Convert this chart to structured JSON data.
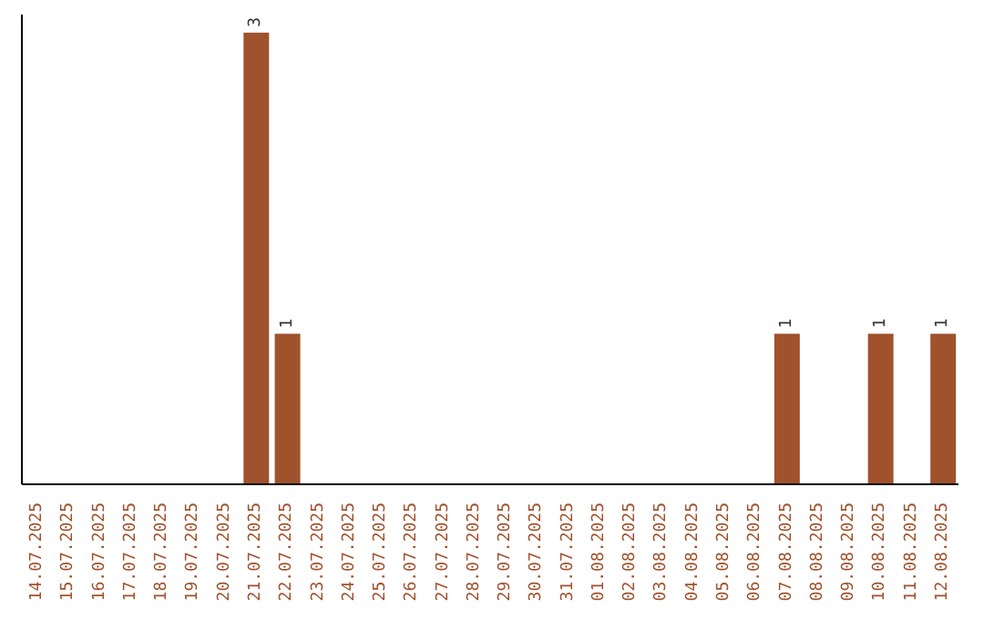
{
  "chart_data": {
    "type": "bar",
    "categories": [
      "14.07.2025",
      "15.07.2025",
      "16.07.2025",
      "17.07.2025",
      "18.07.2025",
      "19.07.2025",
      "20.07.2025",
      "21.07.2025",
      "22.07.2025",
      "23.07.2025",
      "24.07.2025",
      "25.07.2025",
      "26.07.2025",
      "27.07.2025",
      "28.07.2025",
      "29.07.2025",
      "30.07.2025",
      "31.07.2025",
      "01.08.2025",
      "02.08.2025",
      "03.08.2025",
      "04.08.2025",
      "05.08.2025",
      "06.08.2025",
      "07.08.2025",
      "08.08.2025",
      "09.08.2025",
      "10.08.2025",
      "11.08.2025",
      "12.08.2025"
    ],
    "values": [
      0,
      0,
      0,
      0,
      0,
      0,
      0,
      3,
      1,
      0,
      0,
      0,
      0,
      0,
      0,
      0,
      0,
      0,
      0,
      0,
      0,
      0,
      0,
      0,
      1,
      0,
      0,
      1,
      0,
      1
    ],
    "value_labels": [
      null,
      null,
      null,
      null,
      null,
      null,
      null,
      "3",
      "1",
      null,
      null,
      null,
      null,
      null,
      null,
      null,
      null,
      null,
      null,
      null,
      null,
      null,
      null,
      null,
      "1",
      null,
      null,
      "1",
      null,
      "1"
    ],
    "color": "#a0522d",
    "grid": false,
    "legend": false
  }
}
